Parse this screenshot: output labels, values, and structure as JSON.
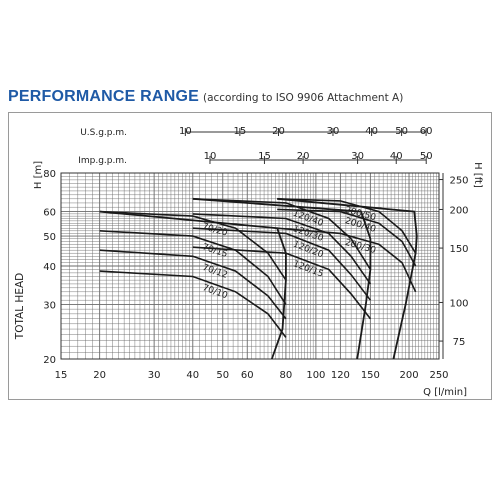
{
  "header": {
    "title": "PERFORMANCE RANGE",
    "subtitle": "(according to ISO 9906 Attachment A)"
  },
  "colors": {
    "title": "#1f5aa6",
    "grid": "#6a6a6a",
    "curve": "#1a1a1a",
    "frame": "#9a9a9a"
  },
  "chart_data": {
    "type": "line",
    "x_scale": "log",
    "y_scale": "log",
    "xlabel": "Q  [l/min]",
    "ylabel": "TOTAL  HEAD",
    "y_unit_left": "H  [m]",
    "y_unit_right": "H  [ft]",
    "xlim": [
      15,
      250
    ],
    "ylim": [
      20,
      80
    ],
    "x_ticks": [
      15,
      20,
      30,
      40,
      50,
      60,
      80,
      100,
      120,
      150,
      200,
      250
    ],
    "y_ticks_m": [
      20,
      30,
      40,
      50,
      60,
      80
    ],
    "y_ticks_ft": [
      75,
      100,
      150,
      200,
      250
    ],
    "top_axes": [
      {
        "label": "U.S.g.p.m.",
        "ticks": [
          10,
          15,
          20,
          30,
          40,
          50,
          60
        ],
        "gal_to_lpm": 3.785
      },
      {
        "label": "Imp.g.p.m.",
        "ticks": [
          10,
          15,
          20,
          30,
          40,
          50
        ],
        "gal_to_lpm": 4.546
      }
    ],
    "series": [
      {
        "name": "70/20",
        "x": [
          20,
          40,
          55,
          70,
          80
        ],
        "y": [
          60,
          58,
          53,
          44,
          36
        ]
      },
      {
        "name": "70/15",
        "x": [
          20,
          40,
          55,
          70,
          80
        ],
        "y": [
          52,
          50,
          45,
          37,
          30
        ]
      },
      {
        "name": "70/12",
        "x": [
          20,
          40,
          55,
          70,
          80
        ],
        "y": [
          45,
          43,
          38.5,
          32,
          27
        ]
      },
      {
        "name": "70/10",
        "x": [
          20,
          40,
          55,
          70,
          80
        ],
        "y": [
          38.5,
          37,
          33,
          28,
          23.5
        ]
      },
      {
        "name": "120/40",
        "x": [
          40,
          80,
          110,
          130,
          150
        ],
        "y": [
          66,
          64,
          57,
          49,
          39
        ]
      },
      {
        "name": "120/30",
        "x": [
          40,
          80,
          110,
          130,
          150
        ],
        "y": [
          59,
          57,
          51,
          43,
          35
        ]
      },
      {
        "name": "120/20",
        "x": [
          40,
          80,
          110,
          130,
          150
        ],
        "y": [
          53,
          51,
          45,
          37.5,
          31
        ]
      },
      {
        "name": "120/15",
        "x": [
          40,
          80,
          110,
          130,
          150
        ],
        "y": [
          46,
          44,
          39,
          32.5,
          27
        ]
      },
      {
        "name": "200/50",
        "x": [
          75,
          120,
          160,
          190,
          210
        ],
        "y": [
          66,
          65,
          60,
          52,
          44
        ]
      },
      {
        "name": "200/40",
        "x": [
          75,
          120,
          160,
          190,
          210
        ],
        "y": [
          61,
          60,
          55,
          48,
          40
        ]
      },
      {
        "name": "200/30",
        "x": [
          75,
          120,
          160,
          190,
          210
        ],
        "y": [
          53,
          51,
          47,
          41,
          33
        ]
      }
    ],
    "envelopes": [
      {
        "name": "70",
        "x": [
          20,
          75,
          80,
          80,
          78,
          72
        ],
        "y": [
          60,
          53,
          44,
          36,
          25,
          20
        ]
      },
      {
        "name": "120",
        "x": [
          40,
          140,
          150,
          150,
          145,
          136
        ],
        "y": [
          66,
          60,
          49,
          39,
          30,
          20
        ]
      },
      {
        "name": "200",
        "x": [
          75,
          208,
          212,
          210,
          195,
          178
        ],
        "y": [
          66,
          60,
          50,
          44,
          30,
          20
        ]
      }
    ],
    "grid": true
  }
}
